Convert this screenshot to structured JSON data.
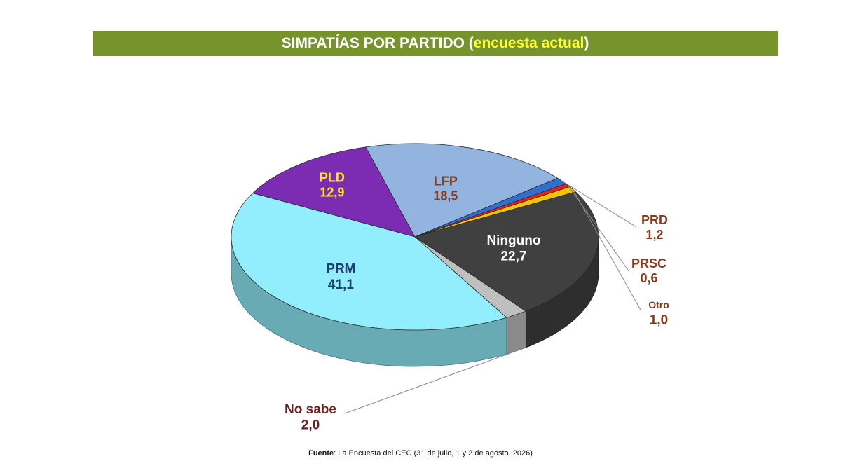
{
  "header": {
    "title_main": "SIMPATÍAS POR PARTIDO",
    "title_paren_open": " (",
    "title_highlight": "encuesta actual",
    "title_paren_close": ")"
  },
  "footer": {
    "source_label": "Fuente",
    "source_text": ": La Encuesta del CEC (31 de julio, 1 y 2 de agosto, 2026)"
  },
  "chart_data": {
    "type": "pie",
    "title": "SIMPATÍAS POR PARTIDO (encuesta actual)",
    "style": "3d",
    "start_order": "clockwise from PLD",
    "slices": [
      {
        "label": "PLD",
        "value": 12.9,
        "value_text": "12,9",
        "color": "#7b2cb3",
        "label_color": "#ffe629"
      },
      {
        "label": "LFP",
        "value": 18.5,
        "value_text": "18,5",
        "color": "#92b4df",
        "label_color": "#8b3b1b"
      },
      {
        "label": "PRD",
        "value": 1.2,
        "value_text": "1,2",
        "color": "#2f6fd0",
        "label_color": "#8b3b1b"
      },
      {
        "label": "PRSC",
        "value": 0.6,
        "value_text": "0,6",
        "color": "#e8201a",
        "label_color": "#8b3b1b"
      },
      {
        "label": "Otro",
        "value": 1.0,
        "value_text": "1,0",
        "color": "#f5c400",
        "label_color": "#8b3b1b"
      },
      {
        "label": "Ninguno",
        "value": 22.7,
        "value_text": "22,7",
        "color": "#404040",
        "label_color": "#ffffff"
      },
      {
        "label": "No sabe",
        "value": 2.0,
        "value_text": "2,0",
        "color": "#bfbfbf",
        "label_color": "#6b1f1f"
      },
      {
        "label": "PRM",
        "value": 41.1,
        "value_text": "41,1",
        "color": "#92eefc",
        "label_color": "#1f3f73"
      }
    ]
  }
}
